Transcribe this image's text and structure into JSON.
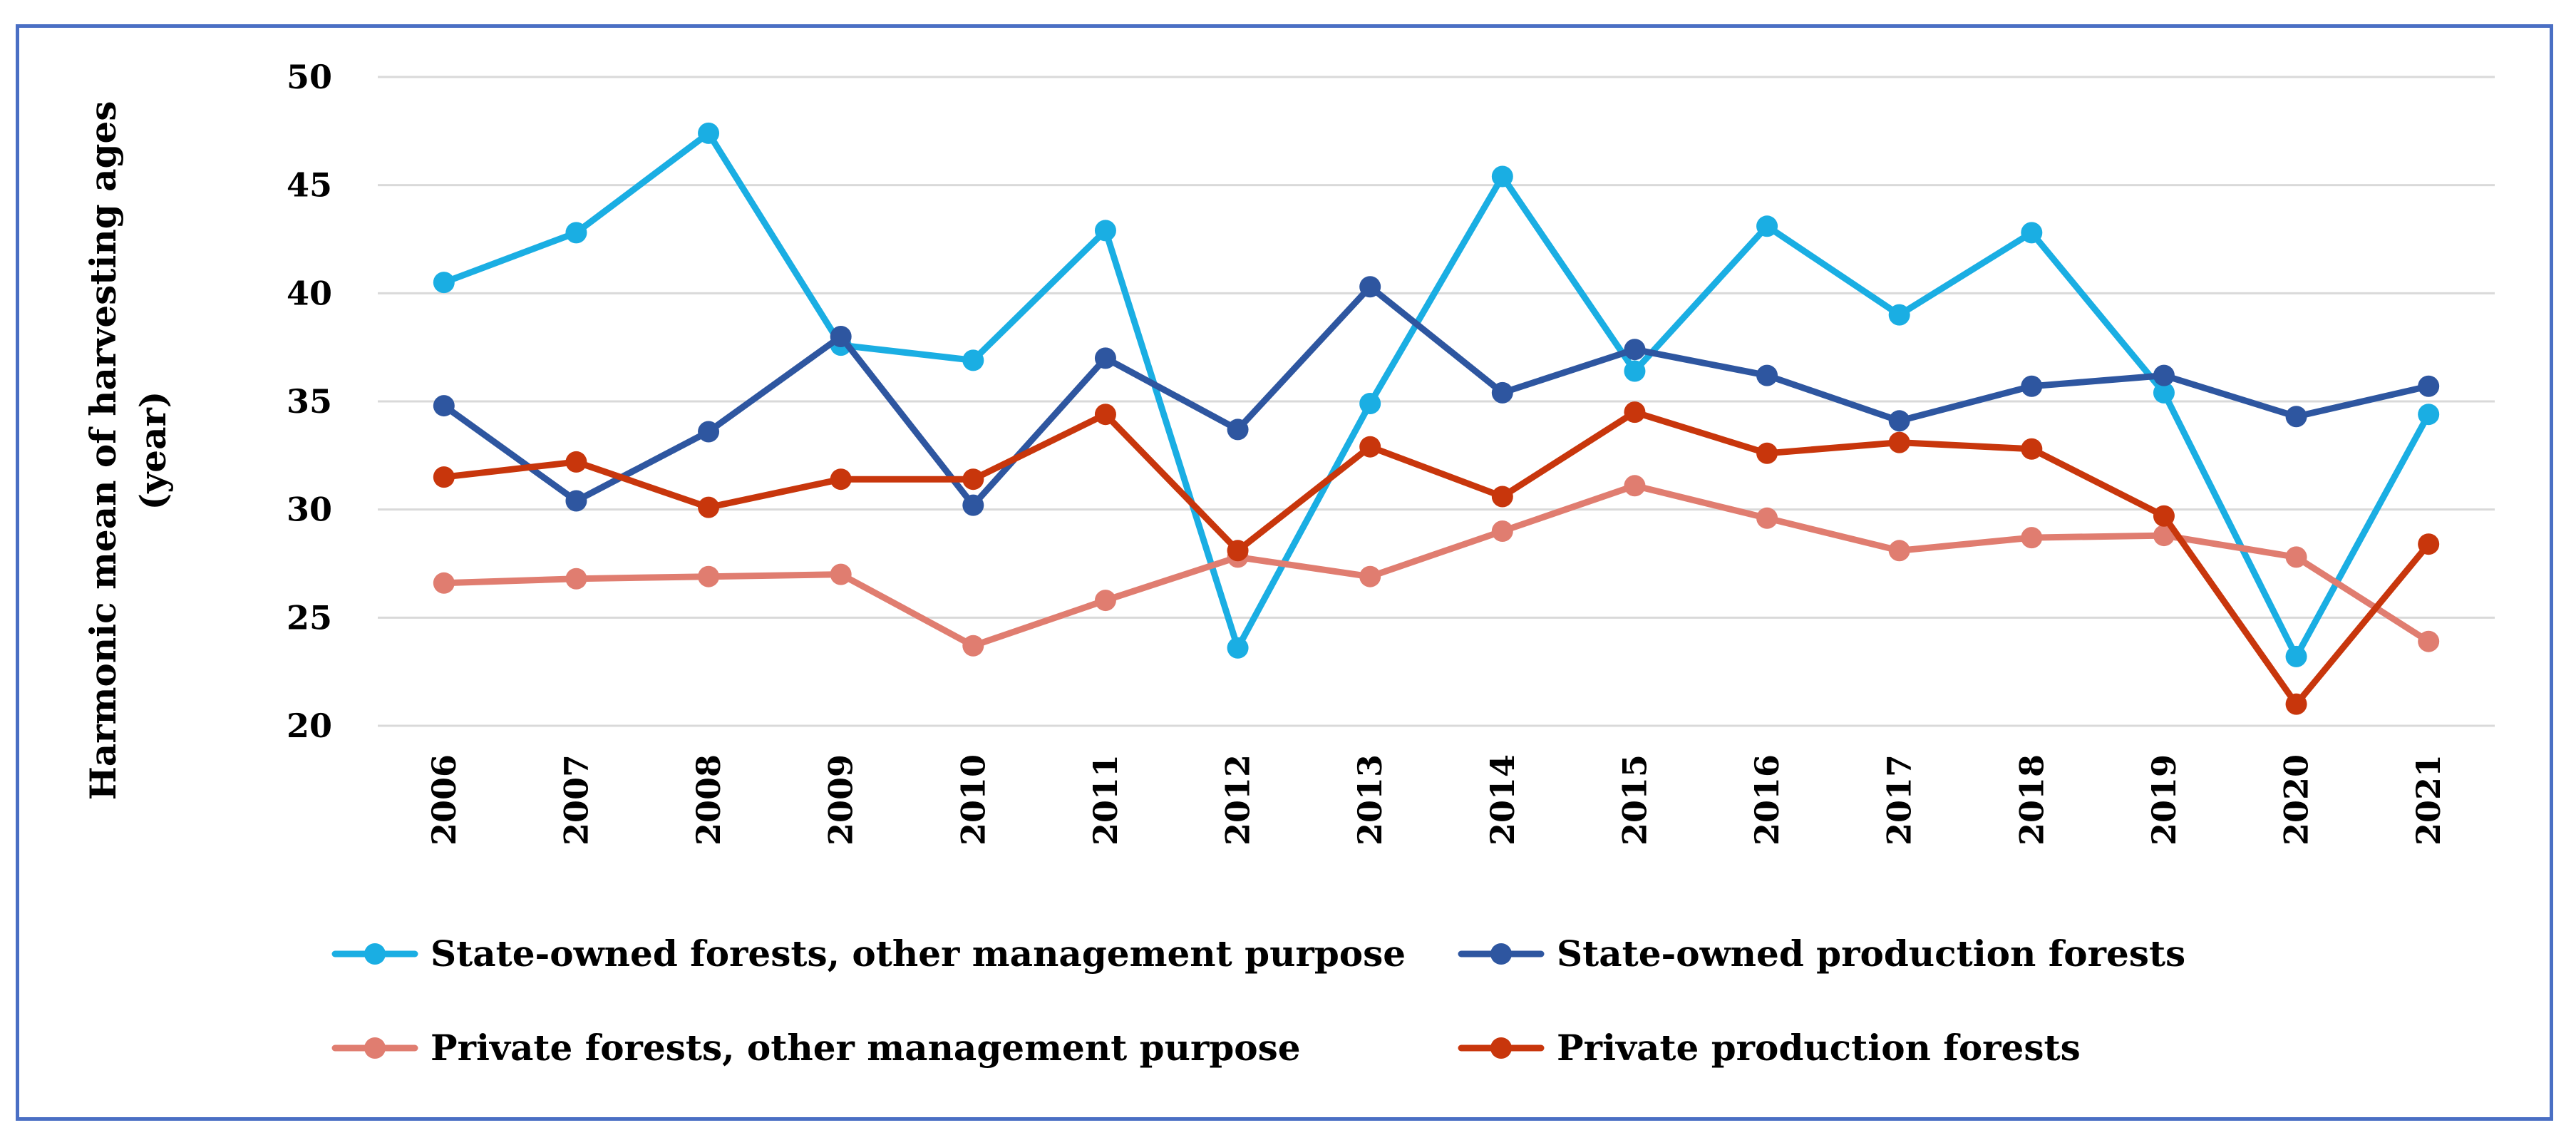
{
  "chart_data": {
    "type": "line",
    "title": "",
    "xlabel": "",
    "ylabel": "Harmonic mean of harvesting ages",
    "ylabel_line2": "(year)",
    "ylim": [
      20,
      50
    ],
    "yticks": [
      20,
      25,
      30,
      35,
      40,
      45,
      50
    ],
    "grid": true,
    "legend_position": "bottom",
    "categories": [
      "2006",
      "2007",
      "2008",
      "2009",
      "2010",
      "2011",
      "2012",
      "2013",
      "2014",
      "2015",
      "2016",
      "2017",
      "2018",
      "2019",
      "2020",
      "2021"
    ],
    "series": [
      {
        "name": "State-owned forests, other management purpose",
        "color": "#1aaee3",
        "values": [
          40.5,
          42.8,
          47.4,
          37.6,
          36.9,
          42.9,
          23.6,
          34.9,
          45.4,
          36.4,
          43.1,
          39.0,
          42.8,
          35.4,
          23.2,
          34.4
        ]
      },
      {
        "name": "State-owned production forests",
        "color": "#2e56a0",
        "values": [
          34.8,
          30.4,
          33.6,
          38.0,
          30.2,
          37.0,
          33.7,
          40.3,
          35.4,
          37.4,
          36.2,
          34.1,
          35.7,
          36.2,
          34.3,
          35.7
        ]
      },
      {
        "name": "Private forests, other management purpose",
        "color": "#e07d70",
        "values": [
          26.6,
          26.8,
          26.9,
          27.0,
          23.7,
          25.8,
          27.8,
          26.9,
          29.0,
          31.1,
          29.6,
          28.1,
          28.7,
          28.8,
          27.8,
          23.9
        ]
      },
      {
        "name": "Private production forests",
        "color": "#c8360c",
        "values": [
          31.5,
          32.2,
          30.1,
          31.4,
          31.4,
          34.4,
          28.1,
          32.9,
          30.6,
          34.5,
          32.6,
          33.1,
          32.8,
          29.7,
          21.0,
          28.4
        ]
      }
    ]
  },
  "style": {
    "grid_color": "#d9d9d9",
    "frame_color": "#4a6fc4",
    "text_color": "#000000"
  }
}
